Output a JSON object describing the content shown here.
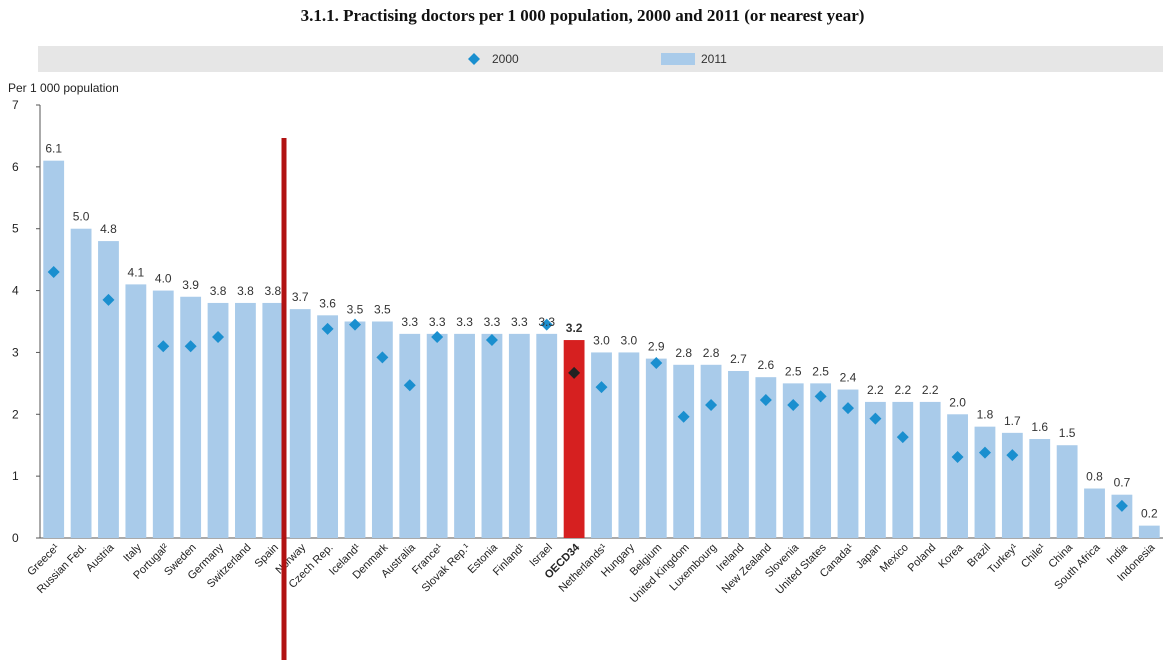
{
  "chart_data": {
    "type": "bar",
    "title": "3.1.1.  Practising doctors per 1 000 population, 2000 and 2011 (or nearest year)",
    "ylabel": "Per 1 000 population",
    "xlabel": "",
    "ylim": [
      0,
      7
    ],
    "yticks": [
      0,
      1,
      2,
      3,
      4,
      5,
      6,
      7
    ],
    "grid": false,
    "legend_position": "top-center",
    "categories": [
      "Greece¹",
      "Russian Fed.",
      "Austria",
      "Italy",
      "Portugal²",
      "Sweden",
      "Germany",
      "Switzerland",
      "Spain",
      "Norway",
      "Czech Rep.",
      "Iceland¹",
      "Denmark",
      "Australia",
      "France¹",
      "Slovak Rep.¹",
      "Estonia",
      "Finland¹",
      "Israel",
      "OECD34",
      "Netherlands¹",
      "Hungary",
      "Belgium",
      "United Kingdom",
      "Luxembourg",
      "Ireland",
      "New Zealand",
      "Slovenia",
      "United States",
      "Canada¹",
      "Japan",
      "Mexico",
      "Poland",
      "Korea",
      "Brazil",
      "Turkey¹",
      "Chile¹",
      "China",
      "South Africa",
      "India",
      "Indonesia"
    ],
    "series": [
      {
        "name": "2011",
        "type": "bar",
        "values": [
          6.1,
          5.0,
          4.8,
          4.1,
          4.0,
          3.9,
          3.8,
          3.8,
          3.8,
          3.7,
          3.6,
          3.5,
          3.5,
          3.3,
          3.3,
          3.3,
          3.3,
          3.3,
          3.3,
          3.2,
          3.0,
          3.0,
          2.9,
          2.8,
          2.8,
          2.7,
          2.6,
          2.5,
          2.5,
          2.4,
          2.2,
          2.2,
          2.2,
          2.0,
          1.8,
          1.7,
          1.6,
          1.5,
          0.8,
          0.7,
          0.2
        ],
        "labels": [
          "6.1",
          "5.0",
          "4.8",
          "4.1",
          "4.0",
          "3.9",
          "3.8",
          "3.8",
          "3.8",
          "3.7",
          "3.6",
          "3.5",
          "3.5",
          "3.3",
          "3.3",
          "3.3",
          "3.3",
          "3.3",
          "3.3",
          "3.2",
          "3.0",
          "3.0",
          "2.9",
          "2.8",
          "2.8",
          "2.7",
          "2.6",
          "2.5",
          "2.5",
          "2.4",
          "2.2",
          "2.2",
          "2.2",
          "2.0",
          "1.8",
          "1.7",
          "1.6",
          "1.5",
          "0.8",
          "0.7",
          "0.2"
        ]
      },
      {
        "name": "2000",
        "type": "scatter",
        "values": [
          4.3,
          null,
          3.85,
          null,
          3.1,
          3.1,
          3.25,
          null,
          null,
          null,
          3.38,
          3.45,
          2.92,
          2.47,
          3.25,
          null,
          3.2,
          null,
          3.45,
          2.67,
          2.44,
          null,
          2.83,
          1.96,
          2.15,
          null,
          2.23,
          2.15,
          2.29,
          2.1,
          1.93,
          1.63,
          null,
          1.31,
          1.38,
          1.34,
          null,
          null,
          null,
          0.52,
          null
        ]
      }
    ],
    "highlight_category": "OECD34",
    "colors": {
      "bar": "#a9cbea",
      "bar_highlight": "#d62020",
      "marker": "#1a8fcf",
      "marker_highlight": "#222222",
      "legend_band": "#e6e6e6",
      "vertical_marker_line": "#b11212"
    }
  }
}
